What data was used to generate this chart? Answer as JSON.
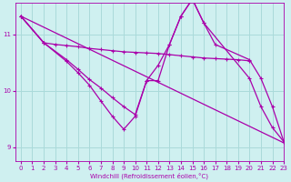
{
  "bg_color": "#cff0f0",
  "grid_color": "#aadada",
  "line_color": "#aa00aa",
  "xlabel": "Windchill (Refroidissement éolien,°C)",
  "xlim": [
    -0.5,
    23
  ],
  "ylim": [
    8.75,
    11.55
  ],
  "yticks": [
    9,
    10,
    11
  ],
  "xticks": [
    0,
    1,
    2,
    3,
    4,
    5,
    6,
    7,
    8,
    9,
    10,
    11,
    12,
    13,
    14,
    15,
    16,
    17,
    18,
    19,
    20,
    21,
    22,
    23
  ],
  "series": [
    {
      "x": [
        0,
        23
      ],
      "y": [
        11.32,
        9.08
      ],
      "marker": "None",
      "markersize": 0,
      "linewidth": 0.9,
      "linestyle": "-"
    },
    {
      "x": [
        0,
        2,
        3,
        4,
        5,
        6,
        7,
        8,
        9,
        10,
        11,
        12,
        13,
        14,
        15,
        16,
        17,
        18,
        19,
        20
      ],
      "y": [
        11.32,
        10.85,
        10.82,
        10.8,
        10.78,
        10.75,
        10.73,
        10.71,
        10.69,
        10.68,
        10.67,
        10.66,
        10.64,
        10.62,
        10.6,
        10.58,
        10.57,
        10.56,
        10.55,
        10.53
      ],
      "marker": "+",
      "markersize": 3.5,
      "linewidth": 0.9,
      "linestyle": "-"
    },
    {
      "x": [
        0,
        2,
        4,
        5,
        6,
        7,
        8,
        9,
        10,
        11,
        12,
        13,
        14,
        15,
        16,
        17,
        20,
        21,
        22,
        23
      ],
      "y": [
        11.32,
        10.85,
        10.55,
        10.38,
        10.2,
        10.05,
        9.88,
        9.72,
        9.58,
        10.18,
        10.45,
        10.82,
        11.32,
        11.62,
        11.2,
        10.82,
        10.55,
        10.22,
        9.72,
        9.1
      ],
      "marker": "+",
      "markersize": 3.5,
      "linewidth": 0.9,
      "linestyle": "-"
    },
    {
      "x": [
        0,
        2,
        4,
        5,
        6,
        7,
        8,
        9,
        10,
        11,
        12,
        13,
        14,
        15,
        16,
        20,
        21,
        22,
        23
      ],
      "y": [
        11.32,
        10.85,
        10.52,
        10.32,
        10.1,
        9.82,
        9.55,
        9.32,
        9.55,
        10.18,
        10.18,
        10.82,
        11.32,
        11.62,
        11.2,
        10.22,
        9.72,
        9.35,
        9.1
      ],
      "marker": "+",
      "markersize": 3.5,
      "linewidth": 0.9,
      "linestyle": "-"
    }
  ]
}
